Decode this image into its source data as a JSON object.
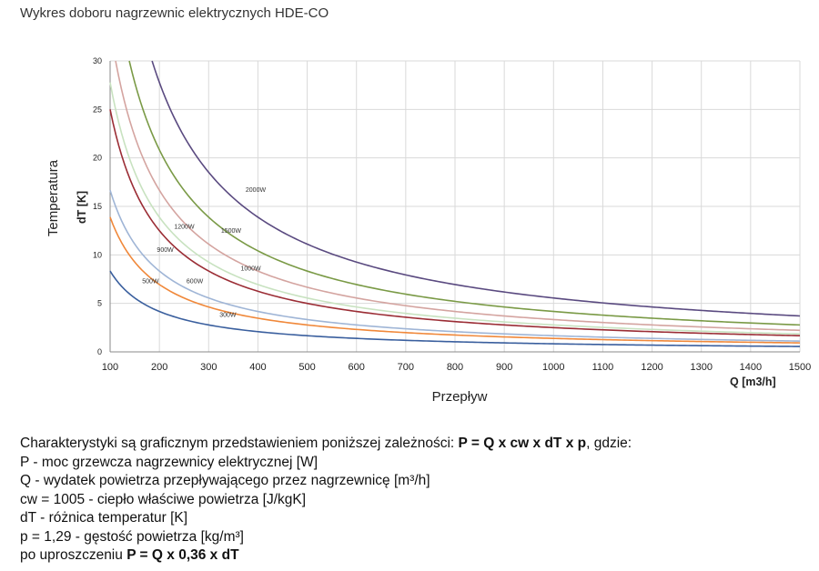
{
  "chart_data": {
    "type": "line",
    "title": "Wykres doboru nagrzewnic elektrycznych HDE-CO",
    "ylabel_main": "Temperatura",
    "ylabel_unit": "dT [K]",
    "xlabel_main": "Przepływ",
    "xlabel_unit": "Q [m3/h]",
    "xlim": [
      100,
      1500
    ],
    "ylim": [
      0,
      30
    ],
    "xticks": [
      100,
      200,
      300,
      400,
      500,
      600,
      700,
      800,
      900,
      1000,
      1100,
      1200,
      1300,
      1400,
      1500
    ],
    "yticks": [
      0,
      5,
      10,
      15,
      20,
      25,
      30
    ],
    "grid": true,
    "formula_factor": 0.36,
    "series": [
      {
        "name": "300W",
        "power": 300,
        "color": "#3a5f9e",
        "label_x": 322,
        "label_y": 3.6
      },
      {
        "name": "500W",
        "power": 500,
        "color": "#f0883a",
        "label_x": 165,
        "label_y": 7.1
      },
      {
        "name": "600W",
        "power": 600,
        "color": "#9fb5d6",
        "label_x": 255,
        "label_y": 7.1
      },
      {
        "name": "900W",
        "power": 900,
        "color": "#9b2d35",
        "label_x": 195,
        "label_y": 10.3
      },
      {
        "name": "1000W",
        "power": 1000,
        "color": "#c8e2c0",
        "label_x": 365,
        "label_y": 8.4
      },
      {
        "name": "1200W",
        "power": 1200,
        "color": "#d4a4a0",
        "label_x": 230,
        "label_y": 12.7
      },
      {
        "name": "1500W",
        "power": 1500,
        "color": "#7a9a46",
        "label_x": 325,
        "label_y": 12.3
      },
      {
        "name": "2000W",
        "power": 2000,
        "color": "#5a4a80",
        "label_x": 375,
        "label_y": 16.5
      }
    ]
  },
  "description": {
    "line1_prefix": "Charakterystyki są graficznym przedstawieniem poniższej zależności: ",
    "line1_formula": "P = Q x cw x dT x p",
    "line1_suffix": ", gdzie:",
    "line2": "P   - moc grzewcza nagrzewnicy elektrycznej [W]",
    "line3": "Q   - wydatek powietrza przepływającego przez nagrzewnicę [m³/h]",
    "line4": "cw = 1005 - ciepło właściwe powietrza [J/kgK]",
    "line5": "dT  - różnica temperatur [K]",
    "line6": "p = 1,29 - gęstość powietrza [kg/m³]",
    "line7_prefix": "po uproszczeniu ",
    "line7_formula": "P = Q x 0,36 x dT"
  }
}
